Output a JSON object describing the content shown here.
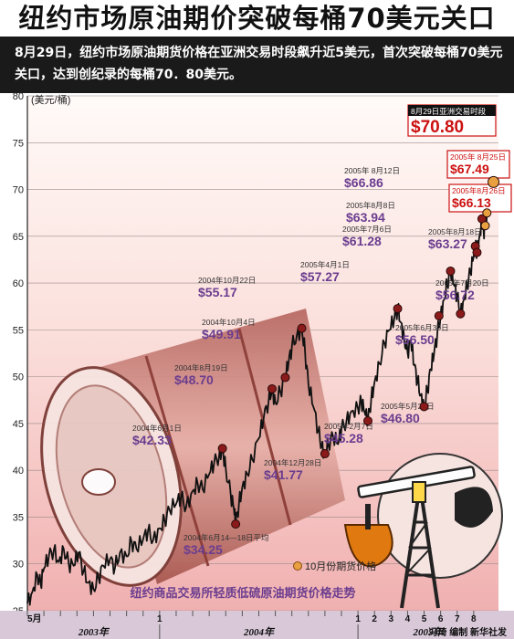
{
  "headline": "纽约市场原油期价突破每桶70美元关口",
  "subhead": "8月29日，纽约市场原油期货价格在亚洲交易时段飙升近5美元，首次突破每桶70美元关口，达到创纪录的每桶70．80美元。",
  "chart_data": {
    "type": "line",
    "title": "纽约商品交易所轻质低硫原油期货价格走势",
    "ylabel": "(美元/桶)",
    "ylim": [
      25,
      80
    ],
    "yticks": [
      25,
      30,
      35,
      40,
      45,
      50,
      55,
      60,
      65,
      70,
      75,
      80
    ],
    "xlim": [
      0,
      28.5
    ],
    "month_ticks": [
      {
        "x": 0,
        "label": "5月"
      },
      {
        "x": 1,
        "label": ""
      },
      {
        "x": 2,
        "label": ""
      },
      {
        "x": 3,
        "label": ""
      },
      {
        "x": 4,
        "label": ""
      },
      {
        "x": 5,
        "label": ""
      },
      {
        "x": 6,
        "label": ""
      },
      {
        "x": 7,
        "label": ""
      },
      {
        "x": 8,
        "label": "1"
      },
      {
        "x": 9,
        "label": ""
      },
      {
        "x": 10,
        "label": ""
      },
      {
        "x": 11,
        "label": ""
      },
      {
        "x": 12,
        "label": ""
      },
      {
        "x": 13,
        "label": ""
      },
      {
        "x": 14,
        "label": ""
      },
      {
        "x": 15,
        "label": ""
      },
      {
        "x": 16,
        "label": ""
      },
      {
        "x": 17,
        "label": ""
      },
      {
        "x": 18,
        "label": ""
      },
      {
        "x": 19,
        "label": ""
      },
      {
        "x": 20,
        "label": "1"
      },
      {
        "x": 21,
        "label": "2"
      },
      {
        "x": 22,
        "label": "3"
      },
      {
        "x": 23,
        "label": "4"
      },
      {
        "x": 24,
        "label": "5"
      },
      {
        "x": 25,
        "label": "6"
      },
      {
        "x": 26,
        "label": "7"
      },
      {
        "x": 27,
        "label": "8"
      }
    ],
    "years": [
      {
        "label": "2003年",
        "from": 0,
        "to": 8
      },
      {
        "label": "2004年",
        "from": 8,
        "to": 20
      },
      {
        "label": "2005年",
        "from": 20,
        "to": 28.5
      }
    ],
    "series": [
      {
        "name": "10月份期货价格",
        "points": [
          [
            0.0,
            25.8
          ],
          [
            0.3,
            27.0
          ],
          [
            0.6,
            28.8
          ],
          [
            0.8,
            27.8
          ],
          [
            1.0,
            29.5
          ],
          [
            1.3,
            30.8
          ],
          [
            1.6,
            31.5
          ],
          [
            1.9,
            30.2
          ],
          [
            2.2,
            31.6
          ],
          [
            2.5,
            30.0
          ],
          [
            2.8,
            29.8
          ],
          [
            3.1,
            31.2
          ],
          [
            3.4,
            29.2
          ],
          [
            3.7,
            28.0
          ],
          [
            4.0,
            27.3
          ],
          [
            4.3,
            28.5
          ],
          [
            4.6,
            29.8
          ],
          [
            5.0,
            30.5
          ],
          [
            5.3,
            29.6
          ],
          [
            5.6,
            31.2
          ],
          [
            6.0,
            30.8
          ],
          [
            6.3,
            32.4
          ],
          [
            6.6,
            31.6
          ],
          [
            7.0,
            32.6
          ],
          [
            7.3,
            33.6
          ],
          [
            7.6,
            32.5
          ],
          [
            8.0,
            33.8
          ],
          [
            8.3,
            34.6
          ],
          [
            8.6,
            35.8
          ],
          [
            9.0,
            36.4
          ],
          [
            9.3,
            37.2
          ],
          [
            9.6,
            36.0
          ],
          [
            10.0,
            37.8
          ],
          [
            10.3,
            38.6
          ],
          [
            10.6,
            38.0
          ],
          [
            11.0,
            39.6
          ],
          [
            11.3,
            40.8
          ],
          [
            11.6,
            41.5
          ],
          [
            11.8,
            42.33
          ],
          [
            12.0,
            40.2
          ],
          [
            12.3,
            37.4
          ],
          [
            12.5,
            35.8
          ],
          [
            12.6,
            34.25
          ],
          [
            12.8,
            36.4
          ],
          [
            13.0,
            38.2
          ],
          [
            13.3,
            39.6
          ],
          [
            13.6,
            41.2
          ],
          [
            14.0,
            43.4
          ],
          [
            14.3,
            45.6
          ],
          [
            14.6,
            47.5
          ],
          [
            14.8,
            48.7
          ],
          [
            15.0,
            47.2
          ],
          [
            15.3,
            48.4
          ],
          [
            15.6,
            49.91
          ],
          [
            15.8,
            51.5
          ],
          [
            16.0,
            53.2
          ],
          [
            16.3,
            54.4
          ],
          [
            16.6,
            55.17
          ],
          [
            16.8,
            52.6
          ],
          [
            17.0,
            49.2
          ],
          [
            17.3,
            46.8
          ],
          [
            17.6,
            44.2
          ],
          [
            17.8,
            42.6
          ],
          [
            18.0,
            41.77
          ],
          [
            18.2,
            42.8
          ],
          [
            18.5,
            43.6
          ],
          [
            18.8,
            42.8
          ],
          [
            19.0,
            44.4
          ],
          [
            19.3,
            45.2
          ],
          [
            19.6,
            46.3
          ],
          [
            20.0,
            46.6
          ],
          [
            20.2,
            47.4
          ],
          [
            20.4,
            46.2
          ],
          [
            20.6,
            45.28
          ],
          [
            20.8,
            47.6
          ],
          [
            21.0,
            49.4
          ],
          [
            21.3,
            51.4
          ],
          [
            21.6,
            53.6
          ],
          [
            21.9,
            55.0
          ],
          [
            22.2,
            56.2
          ],
          [
            22.4,
            57.27
          ],
          [
            22.6,
            55.8
          ],
          [
            22.8,
            54.0
          ],
          [
            23.0,
            52.6
          ],
          [
            23.2,
            53.8
          ],
          [
            23.4,
            51.2
          ],
          [
            23.6,
            49.6
          ],
          [
            23.8,
            48.0
          ],
          [
            24.0,
            46.8
          ],
          [
            24.2,
            48.6
          ],
          [
            24.4,
            50.8
          ],
          [
            24.6,
            52.4
          ],
          [
            24.8,
            54.6
          ],
          [
            25.0,
            56.5
          ],
          [
            25.2,
            58.2
          ],
          [
            25.4,
            60.0
          ],
          [
            25.6,
            61.28
          ],
          [
            25.8,
            59.8
          ],
          [
            26.0,
            58.6
          ],
          [
            26.2,
            56.72
          ],
          [
            26.4,
            58.2
          ],
          [
            26.6,
            59.8
          ],
          [
            26.8,
            61.2
          ],
          [
            27.0,
            62.8
          ],
          [
            27.1,
            63.94
          ],
          [
            27.2,
            63.27
          ],
          [
            27.35,
            65.0
          ],
          [
            27.5,
            66.86
          ],
          [
            27.6,
            65.4
          ],
          [
            27.7,
            66.13
          ],
          [
            27.8,
            67.49
          ],
          [
            28.0,
            68.4
          ],
          [
            28.2,
            70.8
          ]
        ]
      }
    ],
    "annotations": [
      {
        "label": "2004年6月1日",
        "value": "$42.33",
        "x": 11.8,
        "y": 42.33
      },
      {
        "label": "2004年6月14—18日平均",
        "value": "$34.25",
        "x": 12.6,
        "y": 34.25
      },
      {
        "label": "2004年8月19日",
        "value": "$48.70",
        "x": 14.8,
        "y": 48.7
      },
      {
        "label": "2004年10月4日",
        "value": "$49.91",
        "x": 15.6,
        "y": 49.91
      },
      {
        "label": "2004年10月22日",
        "value": "$55.17",
        "x": 16.6,
        "y": 55.17
      },
      {
        "label": "2004年12月28日",
        "value": "$41.77",
        "x": 18.0,
        "y": 41.77
      },
      {
        "label": "2005年2月7日",
        "value": "$45.28",
        "x": 20.6,
        "y": 45.28
      },
      {
        "label": "2005年4月1日",
        "value": "$57.27",
        "x": 22.4,
        "y": 57.27
      },
      {
        "label": "2005年5月20日",
        "value": "$46.80",
        "x": 24.0,
        "y": 46.8
      },
      {
        "label": "2005年6月30日",
        "value": "$56.50",
        "x": 24.9,
        "y": 56.5
      },
      {
        "label": "2005年7月6日",
        "value": "$61.28",
        "x": 25.6,
        "y": 61.28
      },
      {
        "label": "2005年7月20日",
        "value": "$56.72",
        "x": 26.2,
        "y": 56.72
      },
      {
        "label": "2005年8月8日",
        "value": "$63.94",
        "x": 27.1,
        "y": 63.94
      },
      {
        "label": "2005年8月18日",
        "value": "$63.27",
        "x": 27.2,
        "y": 63.27
      },
      {
        "label": "2005年 8月12日",
        "value": "$66.86",
        "x": 27.5,
        "y": 66.86
      },
      {
        "label": "2005年8月26日",
        "value": "$66.13",
        "x": 27.7,
        "y": 66.13
      },
      {
        "label": "2005年 8月25日",
        "value": "$67.49",
        "x": 27.8,
        "y": 67.49
      },
      {
        "label": "8月29日亚洲交易时段",
        "value": "$70.80",
        "x": 28.2,
        "y": 70.8
      }
    ],
    "legend": {
      "label": "10月份期货价格",
      "position": "bottom-right"
    },
    "grid": true
  },
  "credit": "冯琦 编制 新华社发",
  "colors": {
    "line": "#111111",
    "marker": "#8b1a1a",
    "highlight_marker": "#e8a040",
    "label_text": "#6b3d8f",
    "highlight_text": "#cc1111",
    "plot_bg_top": "#fff4f0",
    "plot_bg_bottom": "#f2b8b8",
    "grid": "#9a8a8a",
    "axis_band": "#ccb8c8"
  }
}
